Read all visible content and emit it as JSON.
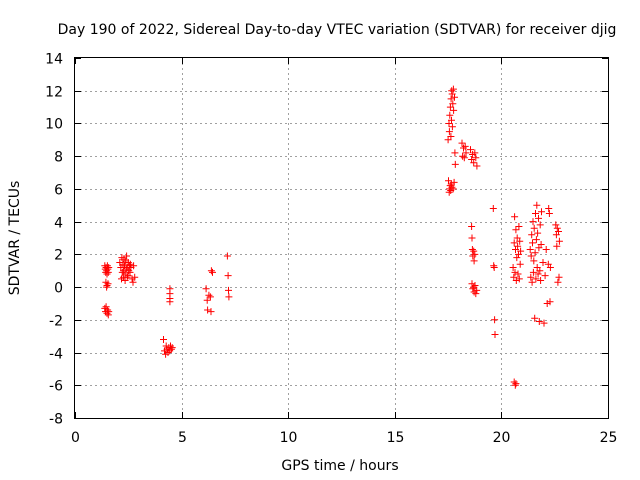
{
  "chart_data": {
    "type": "scatter",
    "title": "Day 190 of 2022, Sidereal Day-to-day VTEC variation (SDTVAR) for receiver djig",
    "xlabel": "GPS time / hours",
    "ylabel": "SDTVAR / TECUs",
    "xlim": [
      0,
      25
    ],
    "ylim": [
      -8,
      14
    ],
    "xticks": [
      0,
      5,
      10,
      15,
      20,
      25
    ],
    "yticks": [
      -8,
      -6,
      -4,
      -2,
      0,
      2,
      4,
      6,
      8,
      10,
      12,
      14
    ],
    "grid": true,
    "marker": "+",
    "color": "#ff0000",
    "series": [
      {
        "name": "SDTVAR",
        "points": [
          [
            1.4,
            1.3
          ],
          [
            1.42,
            1.1
          ],
          [
            1.44,
            0.9
          ],
          [
            1.46,
            1.2
          ],
          [
            1.48,
            1.0
          ],
          [
            1.5,
            0.8
          ],
          [
            1.52,
            1.3
          ],
          [
            1.54,
            1.1
          ],
          [
            1.56,
            0.9
          ],
          [
            1.58,
            1.2
          ],
          [
            1.45,
            0.3
          ],
          [
            1.5,
            0.1
          ],
          [
            1.55,
            0.2
          ],
          [
            1.48,
            0.0
          ],
          [
            1.4,
            -1.3
          ],
          [
            1.43,
            -1.5
          ],
          [
            1.46,
            -1.2
          ],
          [
            1.5,
            -1.6
          ],
          [
            1.53,
            -1.4
          ],
          [
            1.56,
            -1.7
          ],
          [
            1.58,
            -1.5
          ],
          [
            2.1,
            1.5
          ],
          [
            2.15,
            1.2
          ],
          [
            2.2,
            1.8
          ],
          [
            2.22,
            0.9
          ],
          [
            2.25,
            1.4
          ],
          [
            2.28,
            1.0
          ],
          [
            2.3,
            1.7
          ],
          [
            2.32,
            1.3
          ],
          [
            2.35,
            0.8
          ],
          [
            2.38,
            1.6
          ],
          [
            2.4,
            1.1
          ],
          [
            2.42,
            1.9
          ],
          [
            2.45,
            1.2
          ],
          [
            2.48,
            0.7
          ],
          [
            2.5,
            1.5
          ],
          [
            2.52,
            1.0
          ],
          [
            2.55,
            1.3
          ],
          [
            2.58,
            0.9
          ],
          [
            2.6,
            1.4
          ],
          [
            2.18,
            0.5
          ],
          [
            2.27,
            0.6
          ],
          [
            2.35,
            0.4
          ],
          [
            2.45,
            0.6
          ],
          [
            2.62,
            1.2
          ],
          [
            2.68,
            0.5
          ],
          [
            2.72,
            0.3
          ],
          [
            2.75,
            1.3
          ],
          [
            2.8,
            0.6
          ],
          [
            4.15,
            -3.2
          ],
          [
            4.2,
            -3.9
          ],
          [
            4.25,
            -4.1
          ],
          [
            4.28,
            -3.6
          ],
          [
            4.32,
            -3.8
          ],
          [
            4.36,
            -4.0
          ],
          [
            4.4,
            -3.7
          ],
          [
            4.44,
            -3.9
          ],
          [
            4.48,
            -3.6
          ],
          [
            4.52,
            -3.8
          ],
          [
            4.56,
            -3.7
          ],
          [
            4.45,
            -0.1
          ],
          [
            4.45,
            -0.4
          ],
          [
            4.45,
            -0.7
          ],
          [
            4.45,
            -0.9
          ],
          [
            6.15,
            -0.1
          ],
          [
            6.2,
            -0.8
          ],
          [
            6.22,
            -1.4
          ],
          [
            6.28,
            -0.5
          ],
          [
            6.35,
            -0.6
          ],
          [
            6.38,
            -1.5
          ],
          [
            6.4,
            1.0
          ],
          [
            6.45,
            0.9
          ],
          [
            7.15,
            1.9
          ],
          [
            7.18,
            0.7
          ],
          [
            7.2,
            -0.2
          ],
          [
            7.22,
            -0.6
          ],
          [
            17.5,
            9.0
          ],
          [
            17.52,
            6.5
          ],
          [
            17.54,
            10.0
          ],
          [
            17.55,
            5.8
          ],
          [
            17.56,
            9.5
          ],
          [
            17.57,
            6.0
          ],
          [
            17.58,
            10.5
          ],
          [
            17.6,
            6.2
          ],
          [
            17.61,
            11.0
          ],
          [
            17.62,
            5.9
          ],
          [
            17.63,
            9.2
          ],
          [
            17.64,
            11.5
          ],
          [
            17.65,
            6.3
          ],
          [
            17.66,
            10.2
          ],
          [
            17.67,
            12.0
          ],
          [
            17.68,
            6.1
          ],
          [
            17.69,
            11.8
          ],
          [
            17.7,
            9.8
          ],
          [
            17.72,
            11.2
          ],
          [
            17.74,
            6.0
          ],
          [
            17.75,
            12.1
          ],
          [
            17.76,
            10.8
          ],
          [
            17.78,
            6.4
          ],
          [
            17.8,
            11.6
          ],
          [
            17.82,
            8.2
          ],
          [
            17.84,
            7.5
          ],
          [
            18.15,
            8.8
          ],
          [
            18.18,
            8.0
          ],
          [
            18.22,
            8.5
          ],
          [
            18.26,
            7.9
          ],
          [
            18.3,
            8.6
          ],
          [
            18.34,
            8.2
          ],
          [
            18.55,
            8.4
          ],
          [
            18.6,
            7.8
          ],
          [
            18.65,
            8.1
          ],
          [
            18.7,
            7.6
          ],
          [
            18.75,
            8.2
          ],
          [
            18.8,
            7.9
          ],
          [
            18.85,
            7.4
          ],
          [
            18.6,
            3.7
          ],
          [
            18.62,
            3.0
          ],
          [
            18.64,
            2.3
          ],
          [
            18.66,
            1.9
          ],
          [
            18.7,
            2.2
          ],
          [
            18.72,
            1.6
          ],
          [
            18.75,
            2.0
          ],
          [
            18.62,
            0.2
          ],
          [
            18.66,
            -0.1
          ],
          [
            18.7,
            0.0
          ],
          [
            18.72,
            -0.3
          ],
          [
            18.76,
            0.1
          ],
          [
            18.8,
            -0.4
          ],
          [
            18.84,
            -0.2
          ],
          [
            19.62,
            4.8
          ],
          [
            19.64,
            1.3
          ],
          [
            19.66,
            1.2
          ],
          [
            19.68,
            -2.0
          ],
          [
            19.7,
            -2.9
          ],
          [
            20.6,
            -5.8
          ],
          [
            20.65,
            -6.0
          ],
          [
            20.68,
            -5.9
          ],
          [
            20.55,
            1.2
          ],
          [
            20.58,
            0.6
          ],
          [
            20.6,
            2.7
          ],
          [
            20.62,
            4.3
          ],
          [
            20.64,
            0.9
          ],
          [
            20.66,
            2.3
          ],
          [
            20.68,
            3.5
          ],
          [
            20.7,
            0.4
          ],
          [
            20.72,
            1.8
          ],
          [
            20.74,
            3.0
          ],
          [
            20.76,
            2.5
          ],
          [
            20.78,
            0.8
          ],
          [
            20.8,
            2.0
          ],
          [
            20.82,
            3.7
          ],
          [
            20.84,
            0.5
          ],
          [
            20.86,
            2.8
          ],
          [
            20.88,
            1.4
          ],
          [
            20.9,
            2.2
          ],
          [
            21.35,
            2.3
          ],
          [
            21.38,
            0.6
          ],
          [
            21.4,
            1.9
          ],
          [
            21.42,
            3.2
          ],
          [
            21.44,
            0.3
          ],
          [
            21.46,
            2.7
          ],
          [
            21.48,
            4.0
          ],
          [
            21.5,
            0.9
          ],
          [
            21.52,
            1.6
          ],
          [
            21.54,
            3.6
          ],
          [
            21.56,
            -1.9
          ],
          [
            21.58,
            2.1
          ],
          [
            21.6,
            4.5
          ],
          [
            21.62,
            0.5
          ],
          [
            21.64,
            2.9
          ],
          [
            21.66,
            5.0
          ],
          [
            21.68,
            1.2
          ],
          [
            21.7,
            3.3
          ],
          [
            21.72,
            0.8
          ],
          [
            21.74,
            4.2
          ],
          [
            21.76,
            2.4
          ],
          [
            21.78,
            -2.1
          ],
          [
            21.8,
            1.0
          ],
          [
            21.82,
            3.8
          ],
          [
            21.84,
            0.4
          ],
          [
            21.86,
            2.6
          ],
          [
            21.88,
            4.6
          ],
          [
            21.95,
            1.5
          ],
          [
            22.0,
            -2.2
          ],
          [
            22.05,
            0.7
          ],
          [
            22.1,
            2.3
          ],
          [
            22.15,
            -1.0
          ],
          [
            22.2,
            1.4
          ],
          [
            22.22,
            4.8
          ],
          [
            22.25,
            4.5
          ],
          [
            22.28,
            -0.9
          ],
          [
            22.3,
            1.2
          ],
          [
            22.55,
            3.8
          ],
          [
            22.58,
            3.2
          ],
          [
            22.6,
            2.5
          ],
          [
            22.62,
            3.6
          ],
          [
            22.65,
            0.3
          ],
          [
            22.68,
            3.4
          ],
          [
            22.7,
            0.6
          ],
          [
            22.72,
            2.8
          ]
        ]
      }
    ]
  }
}
